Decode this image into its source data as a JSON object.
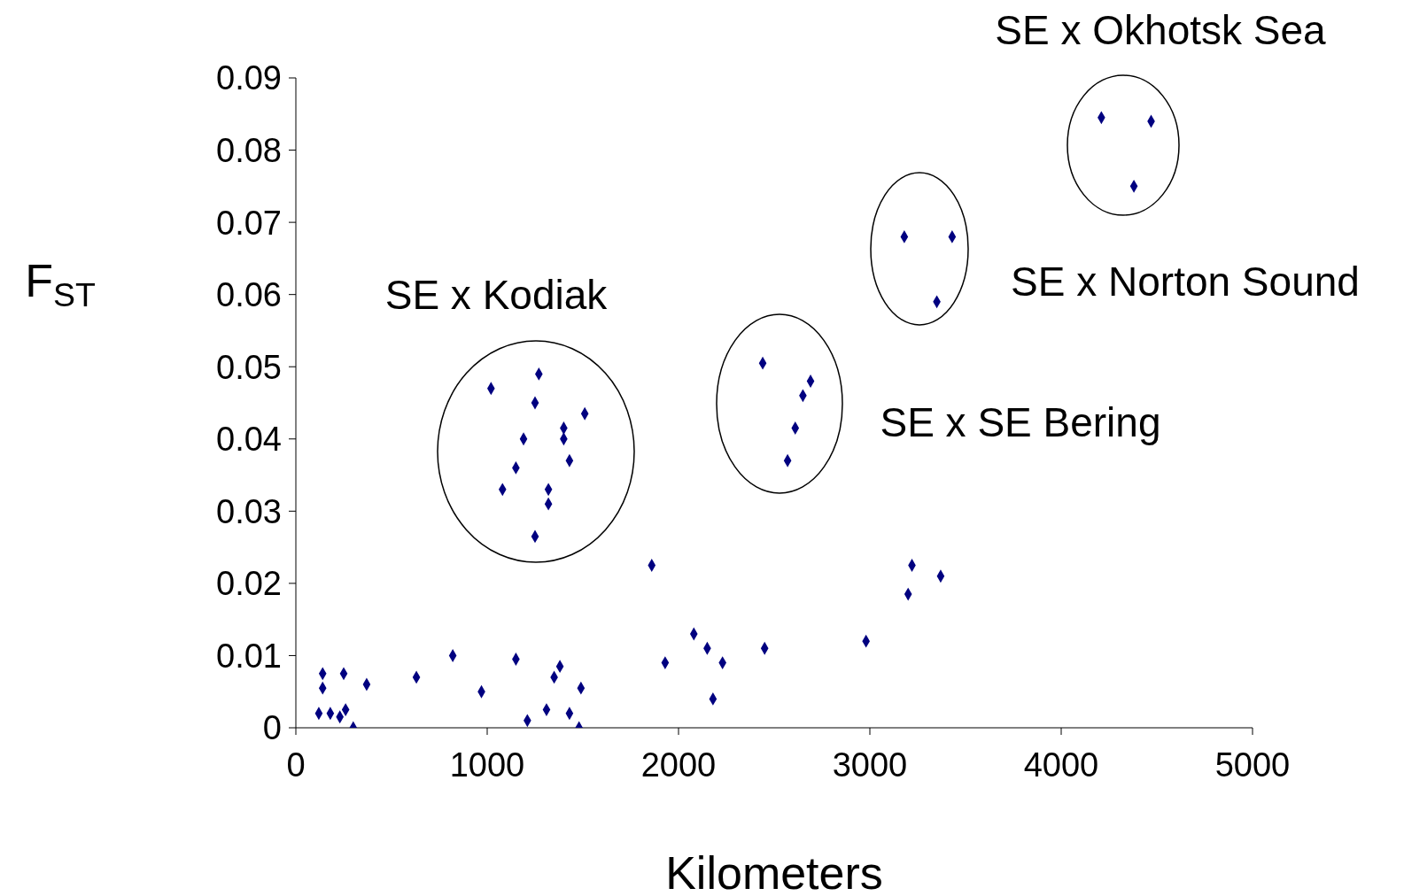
{
  "chart_data": {
    "type": "scatter",
    "xlabel": "Kilometers",
    "ylabel": "F$_{ST}$",
    "xlim": [
      0,
      5000
    ],
    "xticks": [
      0,
      1000,
      2000,
      3000,
      4000,
      5000
    ],
    "ylim": [
      0,
      0.09
    ],
    "yticks": [
      0,
      0.01,
      0.02,
      0.03,
      0.04,
      0.05,
      0.06,
      0.07,
      0.08,
      0.09
    ],
    "grid": false,
    "legend": false,
    "marker": "diamond",
    "series": [
      {
        "color": "#000080",
        "x": [
          1020,
          1270,
          1250,
          1510,
          1400,
          1190,
          1400,
          1430,
          1150,
          1080,
          1320,
          1320,
          1250,
          2440,
          2690,
          2650,
          2610,
          2570,
          3180,
          3430,
          3350,
          4210,
          4470,
          4380,
          140,
          250,
          140,
          120,
          180,
          230,
          260,
          300,
          370,
          630,
          820,
          970,
          1150,
          1210,
          1310,
          1350,
          1380,
          1430,
          1480,
          1490,
          1860,
          1930,
          2080,
          2150,
          2180,
          2230,
          2450,
          2980,
          3200,
          3220,
          3370
        ],
        "values": [
          0.047,
          0.049,
          0.045,
          0.0435,
          0.0415,
          0.04,
          0.04,
          0.037,
          0.036,
          0.033,
          0.033,
          0.031,
          0.0265,
          0.0505,
          0.048,
          0.046,
          0.0415,
          0.037,
          0.068,
          0.068,
          0.059,
          0.0845,
          0.084,
          0.075,
          0.0075,
          0.0075,
          0.0055,
          0.002,
          0.002,
          0.0015,
          0.0025,
          0,
          0.006,
          0.007,
          0.01,
          0.005,
          0.0095,
          0.001,
          0.0025,
          0.007,
          0.0085,
          0.002,
          0,
          0.0055,
          0.0225,
          0.009,
          0.013,
          0.011,
          0.004,
          0.009,
          0.011,
          0.012,
          0.0185,
          0.0225,
          0.021
        ]
      }
    ],
    "annotations": [
      "SE x Kodiak",
      "SE x SE Bering",
      "SE x Norton Sound",
      "SE x Okhotsk Sea"
    ]
  }
}
